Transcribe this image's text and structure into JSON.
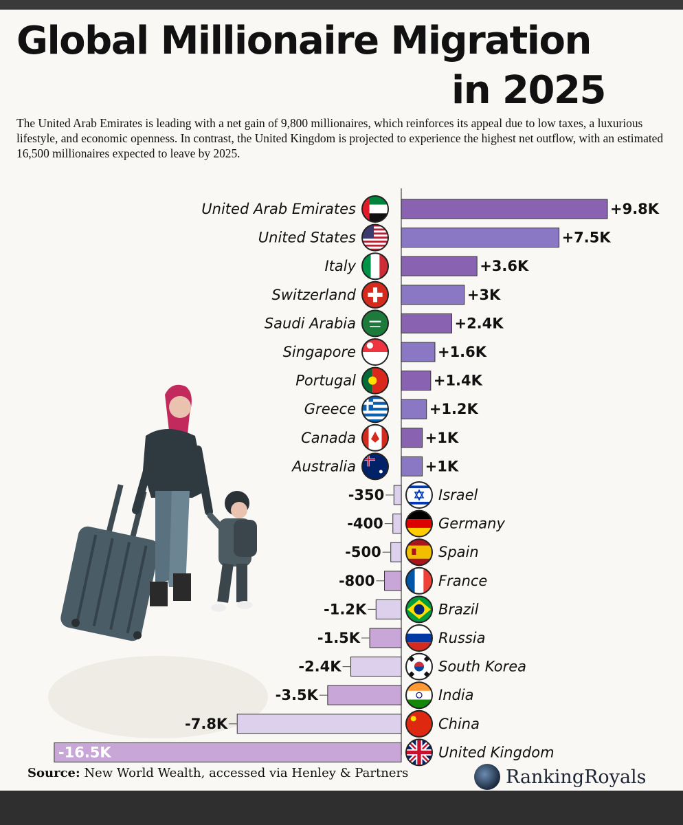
{
  "title_line1": "Global Millionaire Migration",
  "title_line2": "in 2025",
  "subtitle": "The United Arab Emirates is leading with a net gain of 9,800 millionaires, which reinforces its appeal due to low taxes, a luxurious lifestyle, and economic openness. In contrast, the United Kingdom is projected to experience the highest net outflow, with an estimated 16,500 millionaires expected to leave by 2025.",
  "source_label": "Source:",
  "source_text": "New World Wealth, accessed via Henley & Partners",
  "brand": "RankingRoyals",
  "colors": {
    "gain_dark": "#8a62b2",
    "gain_light": "#8a78c4",
    "loss_light": "#ddd0ec",
    "loss_mid": "#c9a6d8"
  },
  "chart_data": {
    "type": "bar",
    "orientation": "horizontal",
    "categories": [
      "United Arab Emirates",
      "United States",
      "Italy",
      "Switzerland",
      "Saudi Arabia",
      "Singapore",
      "Portugal",
      "Greece",
      "Canada",
      "Australia",
      "Israel",
      "Germany",
      "Spain",
      "France",
      "Brazil",
      "Russia",
      "South Korea",
      "India",
      "China",
      "United Kingdom"
    ],
    "values": [
      9800,
      7500,
      3600,
      3000,
      2400,
      1600,
      1400,
      1200,
      1000,
      1000,
      -350,
      -400,
      -500,
      -800,
      -1200,
      -1500,
      -2400,
      -3500,
      -7800,
      -16500
    ],
    "labels": [
      "+9.8K",
      "+7.5K",
      "+3.6K",
      "+3K",
      "+2.4K",
      "+1.6K",
      "+1.4K",
      "+1.2K",
      "+1K",
      "+1K",
      "-350",
      "-400",
      "-500",
      "-800",
      "-1.2K",
      "-1.5K",
      "-2.4K",
      "-3.5K",
      "-7.8K",
      "-16.5K"
    ],
    "flags": [
      "uae-flag-icon",
      "usa-flag-icon",
      "italy-flag-icon",
      "switzerland-flag-icon",
      "saudi-arabia-flag-icon",
      "singapore-flag-icon",
      "portugal-flag-icon",
      "greece-flag-icon",
      "canada-flag-icon",
      "australia-flag-icon",
      "israel-flag-icon",
      "germany-flag-icon",
      "spain-flag-icon",
      "france-flag-icon",
      "brazil-flag-icon",
      "russia-flag-icon",
      "south-korea-flag-icon",
      "india-flag-icon",
      "china-flag-icon",
      "uk-flag-icon"
    ],
    "xlim": [
      -16500,
      9800
    ],
    "unit": "net millionaires"
  }
}
